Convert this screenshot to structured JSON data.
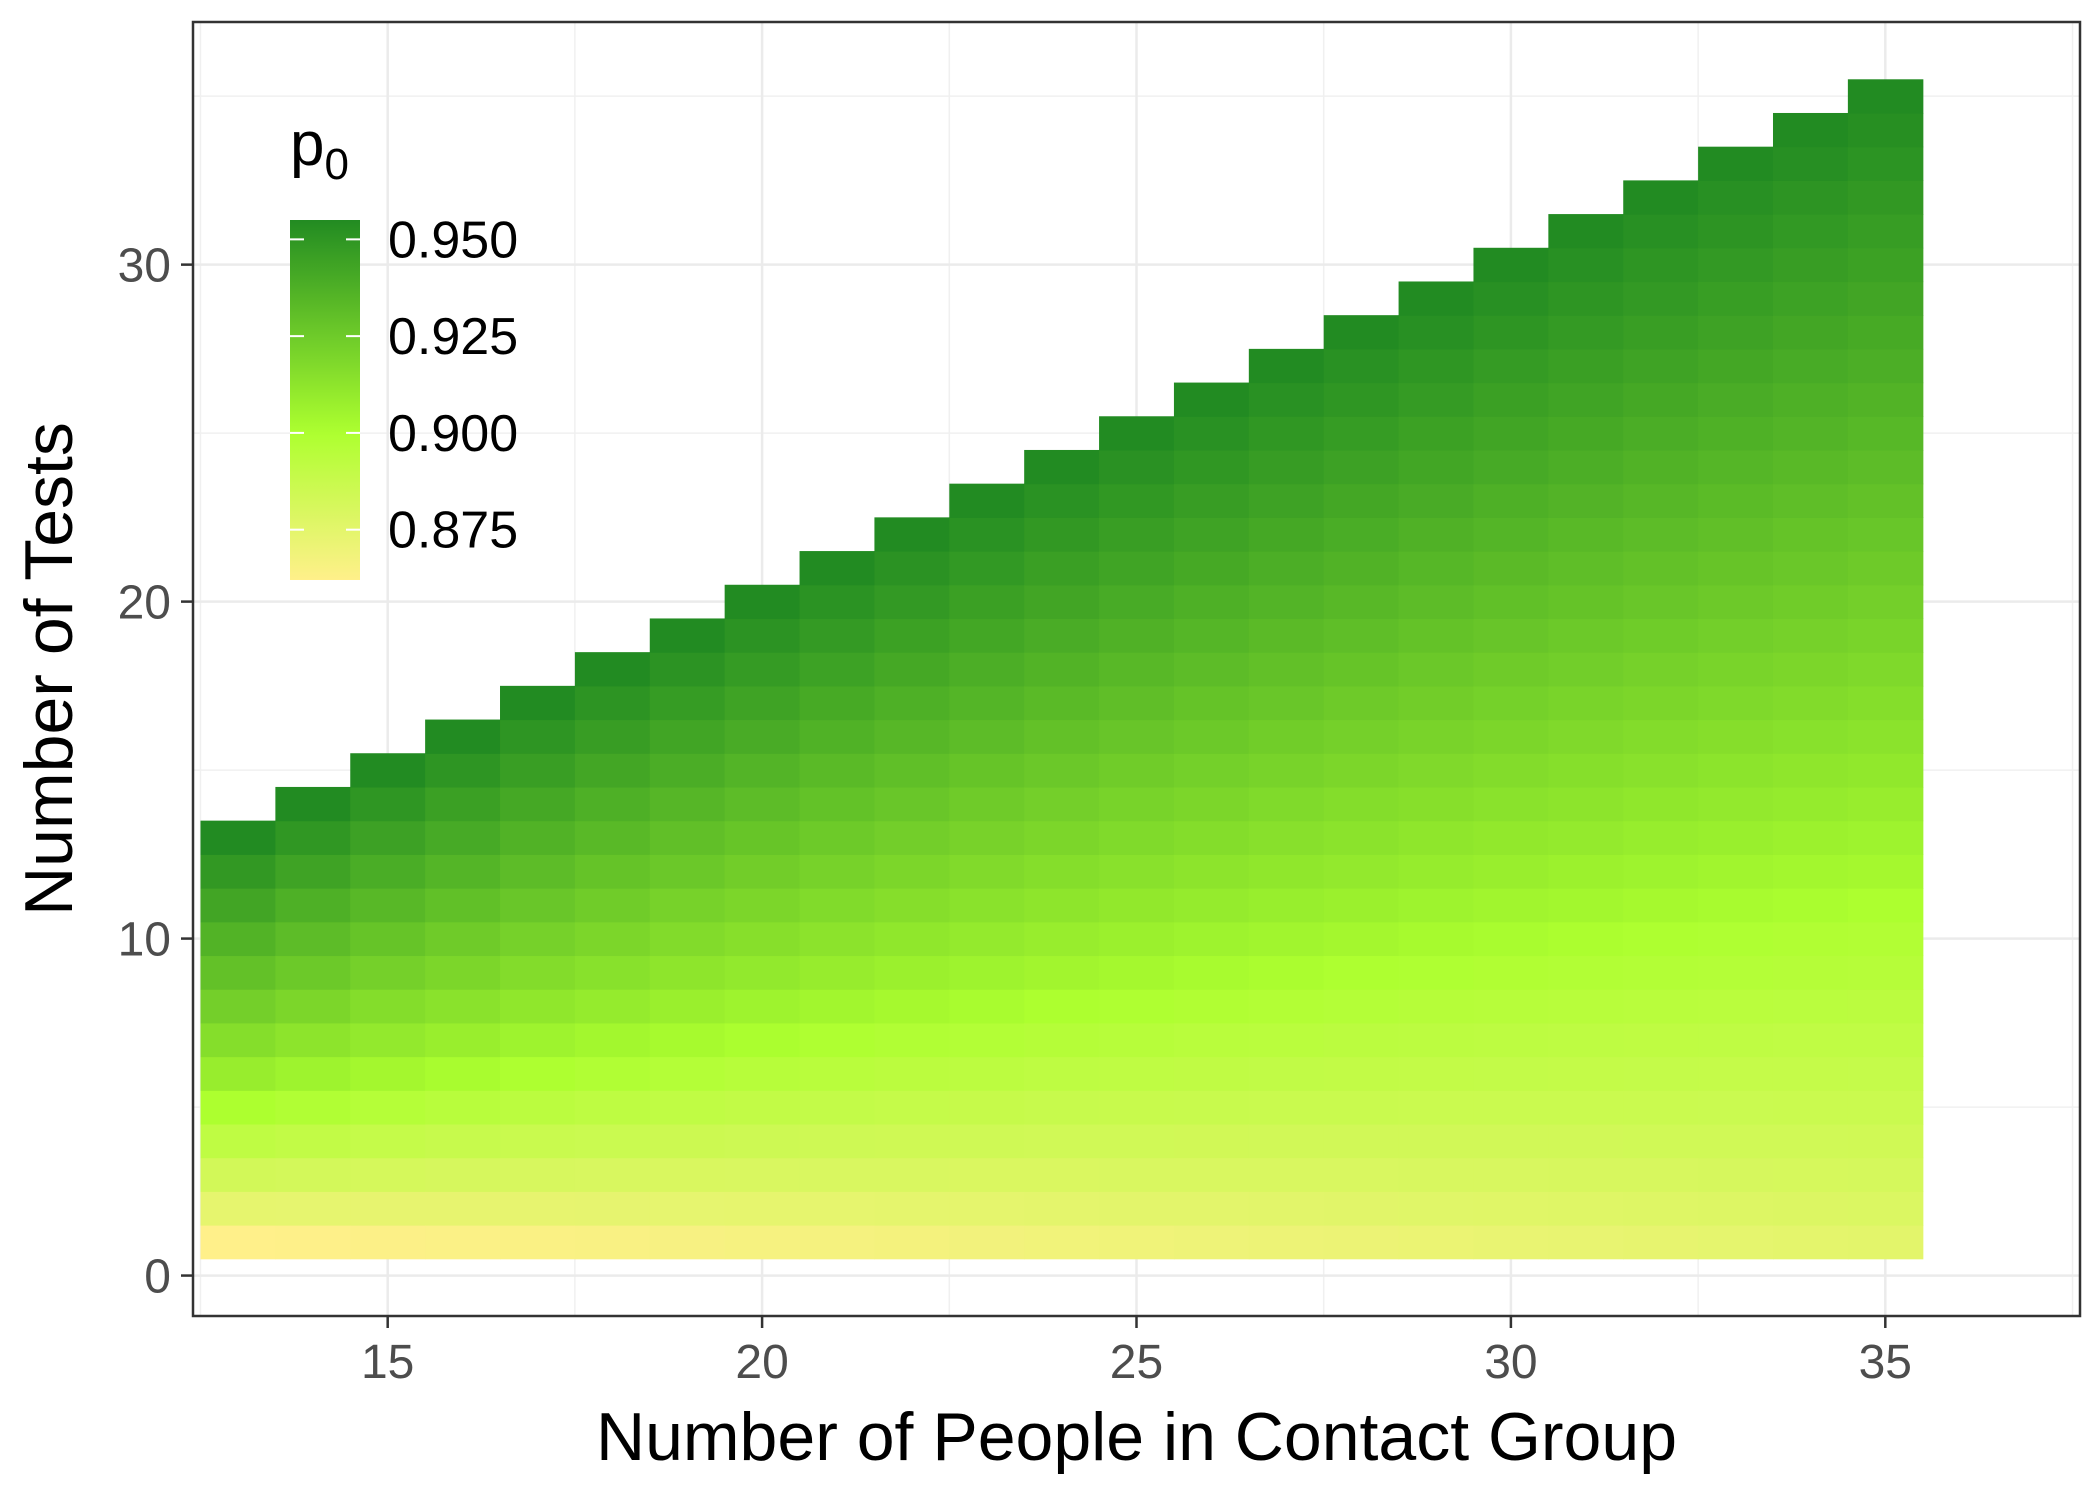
{
  "chart_data": {
    "type": "heatmap",
    "title": "",
    "xlabel": "Number of People in Contact Group",
    "ylabel": "Number of Tests",
    "x_ticks": [
      "15",
      "20",
      "25",
      "30",
      "35"
    ],
    "y_ticks": [
      "0",
      "10",
      "20",
      "30"
    ],
    "xlim": [
      12.4,
      37.6
    ],
    "ylim": [
      -1.2,
      37.2
    ],
    "x_min": 13,
    "x_max": 35,
    "max_tests_by_x": [
      13,
      14,
      15,
      16,
      17,
      18,
      19,
      20,
      21,
      22,
      23,
      24,
      25,
      26,
      27,
      28,
      29,
      30,
      31,
      32,
      33,
      34,
      35
    ],
    "fill_variable": "p",
    "fill_subscript": "0",
    "legend": {
      "title": "p",
      "subscript": "0",
      "position": "top-left inside",
      "labels": [
        "0.950",
        "0.925",
        "0.900",
        "0.875"
      ],
      "values": [
        0.95,
        0.925,
        0.9,
        0.875
      ],
      "range": [
        0.862,
        0.955
      ]
    },
    "color_stops": [
      {
        "value": 0.862,
        "color": "#fff08a"
      },
      {
        "value": 0.9,
        "color": "#adff2f"
      },
      {
        "value": 0.955,
        "color": "#228b22"
      }
    ],
    "p0_model": {
      "corner_x13_t1": 0.862,
      "corner_x35_t1": 0.875,
      "ridge_t_at_x13": 5,
      "ridge_t_at_x35": 11,
      "ridge_value": 0.9,
      "top_value": 0.955
    },
    "grid": true,
    "panel_border": true
  }
}
